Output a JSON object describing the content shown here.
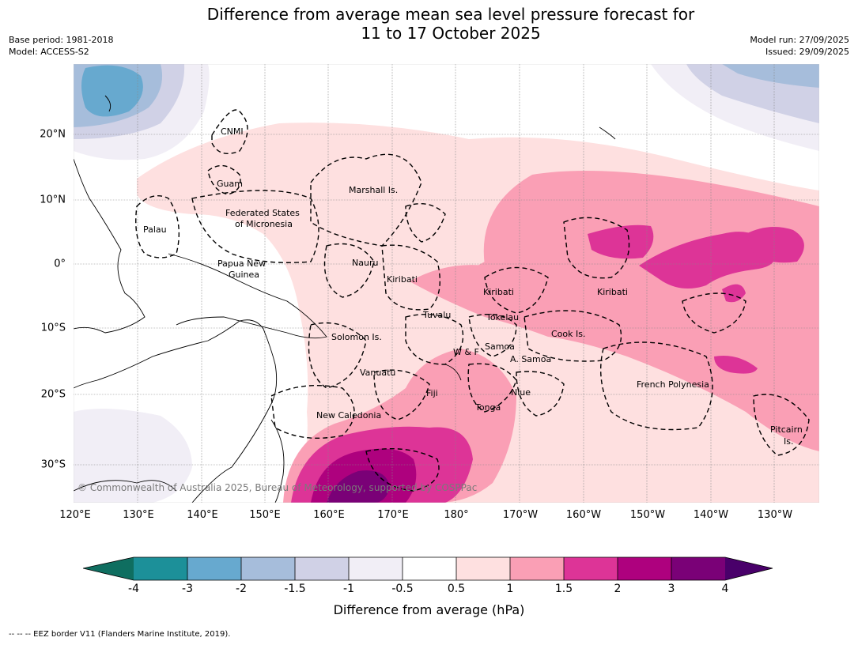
{
  "title_line1": "Difference from average mean sea level pressure forecast for",
  "title_line2": "11 to 17 October 2025",
  "meta_left": {
    "base_period": "Base period: 1981-2018",
    "model": "Model: ACCESS-S2"
  },
  "meta_right": {
    "model_run": "Model run: 27/09/2025",
    "issued": "Issued: 29/09/2025"
  },
  "copyright": "© Commonwealth of Australia 2025, Bureau of Meteorology, supported by COSPPac",
  "lon_labels": [
    "120°E",
    "130°E",
    "140°E",
    "150°E",
    "160°E",
    "170°E",
    "180°",
    "170°W",
    "160°W",
    "150°W",
    "140°W",
    "130°W"
  ],
  "lat_labels": [
    "20°N",
    "10°N",
    "0°",
    "10°S",
    "20°S",
    "30°S"
  ],
  "places": [
    "CNMI",
    "Guam",
    "Marshall Is.",
    "Federated States",
    "of Micronesia",
    "Palau",
    "Papua New",
    "Guinea",
    "Nauru",
    "Kiribati",
    "Kiribati",
    "Kiribati",
    "Tuvalu",
    "Tokelau",
    "Solomon Is.",
    "Cook Is.",
    "W & F",
    "Samoa",
    "A. Samoa",
    "Vanuatu",
    "Fiji",
    "Niue",
    "French Polynesia",
    "Tonga",
    "New Caledonia",
    "Pitcairn",
    "Is."
  ],
  "colorbar": {
    "ticks": [
      "-4",
      "-3",
      "-2",
      "-1.5",
      "-1",
      "-0.5",
      "0.5",
      "1",
      "1.5",
      "2",
      "3",
      "4"
    ],
    "colors": [
      "#0f6e60",
      "#1c9099",
      "#67a9cf",
      "#a6bddb",
      "#d0d1e6",
      "#f1eef6",
      "#ffffff",
      "#fee0e0",
      "#fa9fb5",
      "#dd3497",
      "#ae017e",
      "#7a0177",
      "#49006a"
    ],
    "title": "Difference from average (hPa)"
  },
  "footnote": "--  --  -- EEZ border V11 (Flanders Marine Institute, 2019)."
}
